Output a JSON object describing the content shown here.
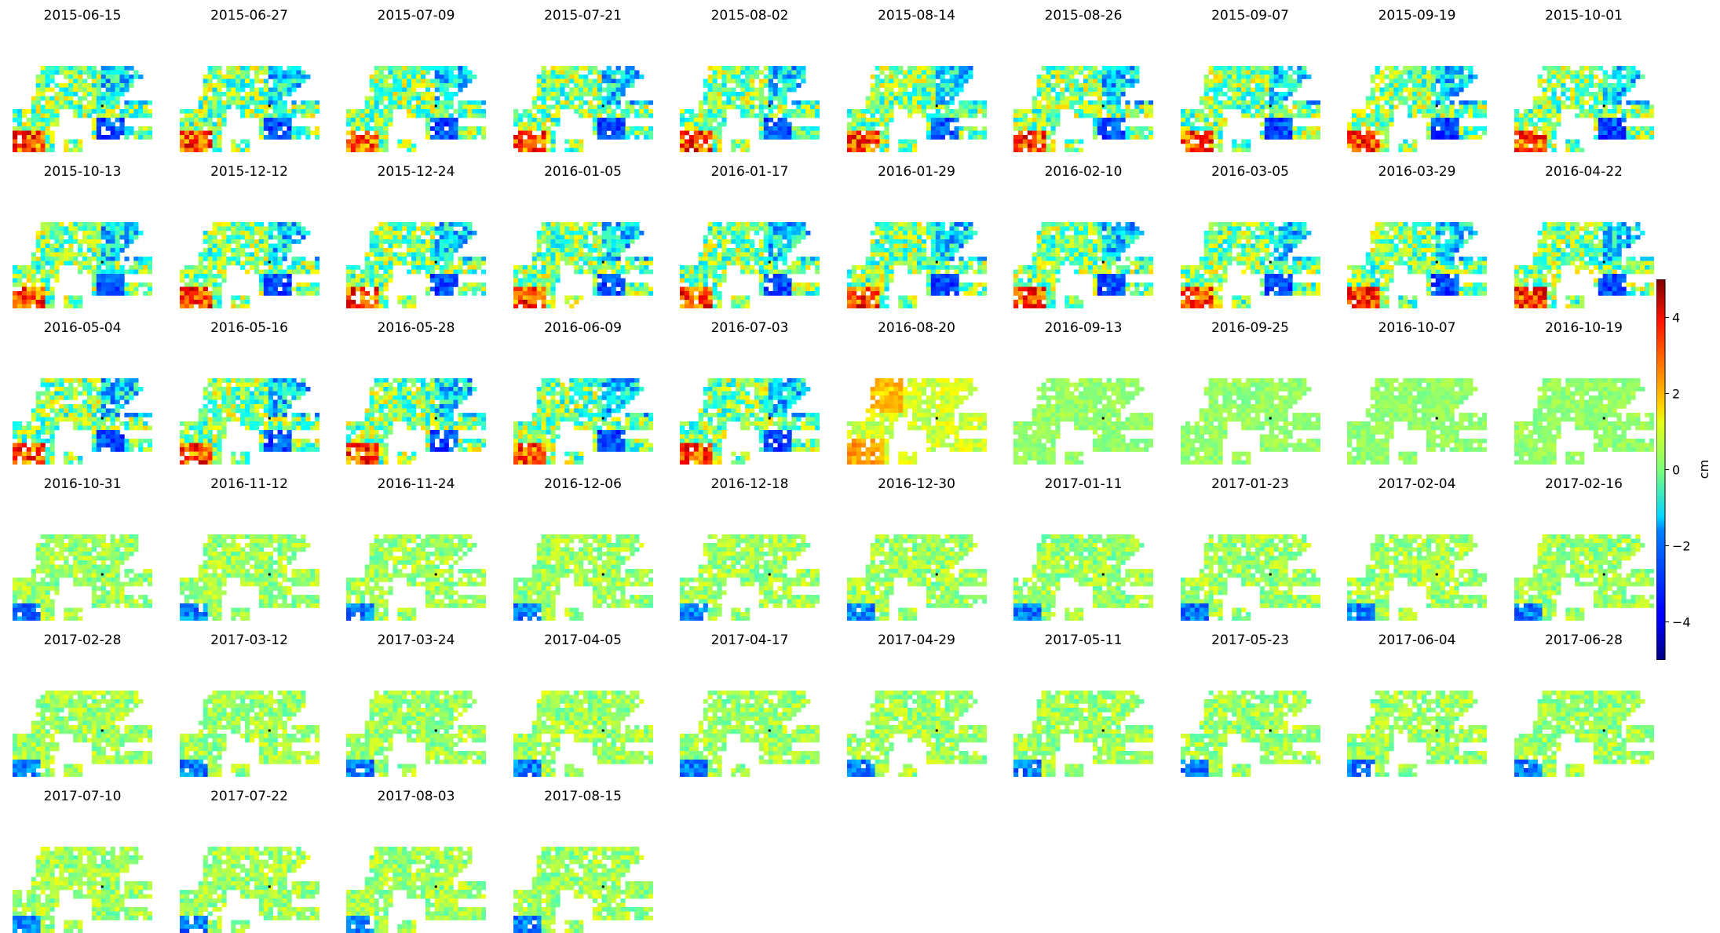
{
  "chart_data": {
    "type": "heatmap",
    "colormap": "jet",
    "grid": false,
    "layout": {
      "columns": 10,
      "rows": 6
    },
    "panels": [
      {
        "date": "2015-06-15",
        "pattern": "mixed"
      },
      {
        "date": "2015-06-27",
        "pattern": "mixed"
      },
      {
        "date": "2015-07-09",
        "pattern": "mixed"
      },
      {
        "date": "2015-07-21",
        "pattern": "mixed"
      },
      {
        "date": "2015-08-02",
        "pattern": "mixed"
      },
      {
        "date": "2015-08-14",
        "pattern": "mixed"
      },
      {
        "date": "2015-08-26",
        "pattern": "mixed"
      },
      {
        "date": "2015-09-07",
        "pattern": "mixed"
      },
      {
        "date": "2015-09-19",
        "pattern": "mixed"
      },
      {
        "date": "2015-10-01",
        "pattern": "mixed"
      },
      {
        "date": "2015-10-13",
        "pattern": "mixed"
      },
      {
        "date": "2015-12-12",
        "pattern": "mixed"
      },
      {
        "date": "2015-12-24",
        "pattern": "mixed"
      },
      {
        "date": "2016-01-05",
        "pattern": "mixed"
      },
      {
        "date": "2016-01-17",
        "pattern": "mixed"
      },
      {
        "date": "2016-01-29",
        "pattern": "mixed"
      },
      {
        "date": "2016-02-10",
        "pattern": "mixed"
      },
      {
        "date": "2016-03-05",
        "pattern": "mixed"
      },
      {
        "date": "2016-03-29",
        "pattern": "mixed"
      },
      {
        "date": "2016-04-22",
        "pattern": "mixed"
      },
      {
        "date": "2016-05-04",
        "pattern": "mixed"
      },
      {
        "date": "2016-05-16",
        "pattern": "mixed"
      },
      {
        "date": "2016-05-28",
        "pattern": "mixed"
      },
      {
        "date": "2016-06-09",
        "pattern": "mixed"
      },
      {
        "date": "2016-07-03",
        "pattern": "mixed"
      },
      {
        "date": "2016-08-20",
        "pattern": "uplift"
      },
      {
        "date": "2016-09-13",
        "pattern": "uniform"
      },
      {
        "date": "2016-09-25",
        "pattern": "uniform"
      },
      {
        "date": "2016-10-07",
        "pattern": "uniform"
      },
      {
        "date": "2016-10-19",
        "pattern": "uniform"
      },
      {
        "date": "2016-10-31",
        "pattern": "smooth"
      },
      {
        "date": "2016-11-12",
        "pattern": "smooth"
      },
      {
        "date": "2016-11-24",
        "pattern": "smooth"
      },
      {
        "date": "2016-12-06",
        "pattern": "smooth"
      },
      {
        "date": "2016-12-18",
        "pattern": "smooth"
      },
      {
        "date": "2016-12-30",
        "pattern": "smooth"
      },
      {
        "date": "2017-01-11",
        "pattern": "smooth"
      },
      {
        "date": "2017-01-23",
        "pattern": "smooth"
      },
      {
        "date": "2017-02-04",
        "pattern": "smooth"
      },
      {
        "date": "2017-02-16",
        "pattern": "smooth"
      },
      {
        "date": "2017-02-28",
        "pattern": "smooth"
      },
      {
        "date": "2017-03-12",
        "pattern": "smooth"
      },
      {
        "date": "2017-03-24",
        "pattern": "smooth"
      },
      {
        "date": "2017-04-05",
        "pattern": "smooth"
      },
      {
        "date": "2017-04-17",
        "pattern": "smooth"
      },
      {
        "date": "2017-04-29",
        "pattern": "smooth"
      },
      {
        "date": "2017-05-11",
        "pattern": "smooth"
      },
      {
        "date": "2017-05-23",
        "pattern": "smooth"
      },
      {
        "date": "2017-06-04",
        "pattern": "smooth"
      },
      {
        "date": "2017-06-28",
        "pattern": "smooth"
      },
      {
        "date": "2017-07-10",
        "pattern": "smooth"
      },
      {
        "date": "2017-07-22",
        "pattern": "smooth"
      },
      {
        "date": "2017-08-03",
        "pattern": "smooth"
      },
      {
        "date": "2017-08-15",
        "pattern": "smooth"
      }
    ],
    "colorbar": {
      "label": "cm",
      "range": [
        -5,
        5
      ],
      "ticks": [
        4,
        2,
        0,
        -2,
        -4
      ],
      "tick_labels": [
        "4",
        "2",
        "0",
        "−2",
        "−4"
      ]
    }
  }
}
